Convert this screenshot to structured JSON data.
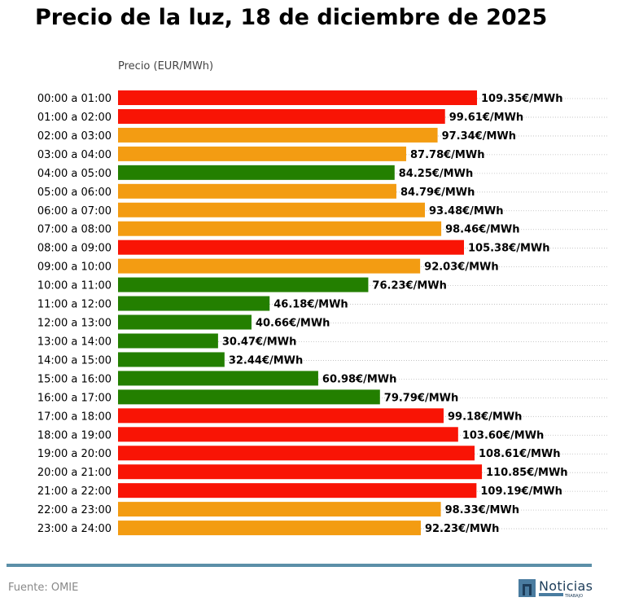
{
  "chart_data": {
    "type": "bar",
    "orientation": "horizontal",
    "title": "Precio de la luz, 18 de diciembre de 2025",
    "xlabel": "Precio (EUR/MWh)",
    "value_suffix": "€/MWh",
    "grid": "dotted horizontal row guides",
    "categories": [
      "00:00 a 01:00",
      "01:00 a 02:00",
      "02:00 a 03:00",
      "03:00 a 04:00",
      "04:00 a 05:00",
      "05:00 a 06:00",
      "06:00 a 07:00",
      "07:00 a 08:00",
      "08:00 a 09:00",
      "09:00 a 10:00",
      "10:00 a 11:00",
      "11:00 a 12:00",
      "12:00 a 13:00",
      "13:00 a 14:00",
      "14:00 a 15:00",
      "15:00 a 16:00",
      "16:00 a 17:00",
      "17:00 a 18:00",
      "18:00 a 19:00",
      "19:00 a 20:00",
      "20:00 a 21:00",
      "21:00 a 22:00",
      "22:00 a 23:00",
      "23:00 a 24:00"
    ],
    "values": [
      109.35,
      99.61,
      97.34,
      87.78,
      84.25,
      84.79,
      93.48,
      98.46,
      105.38,
      92.03,
      76.23,
      46.18,
      40.66,
      30.47,
      32.44,
      60.98,
      79.79,
      99.18,
      103.6,
      108.61,
      110.85,
      109.19,
      98.33,
      92.23
    ],
    "levels": [
      "high",
      "high",
      "mid",
      "mid",
      "low",
      "mid",
      "mid",
      "mid",
      "high",
      "mid",
      "low",
      "low",
      "low",
      "low",
      "low",
      "low",
      "low",
      "high",
      "high",
      "high",
      "high",
      "high",
      "mid",
      "mid"
    ],
    "colors": {
      "high": "#f91405",
      "mid": "#f39c12",
      "low": "#237f00"
    }
  },
  "footer": {
    "source": "Fuente: OMIE",
    "logo_text": "Noticias",
    "logo_sub": "TRABAJO"
  },
  "colors": {
    "rule": "#5b8fa8",
    "logo": "#4a7ca0"
  }
}
